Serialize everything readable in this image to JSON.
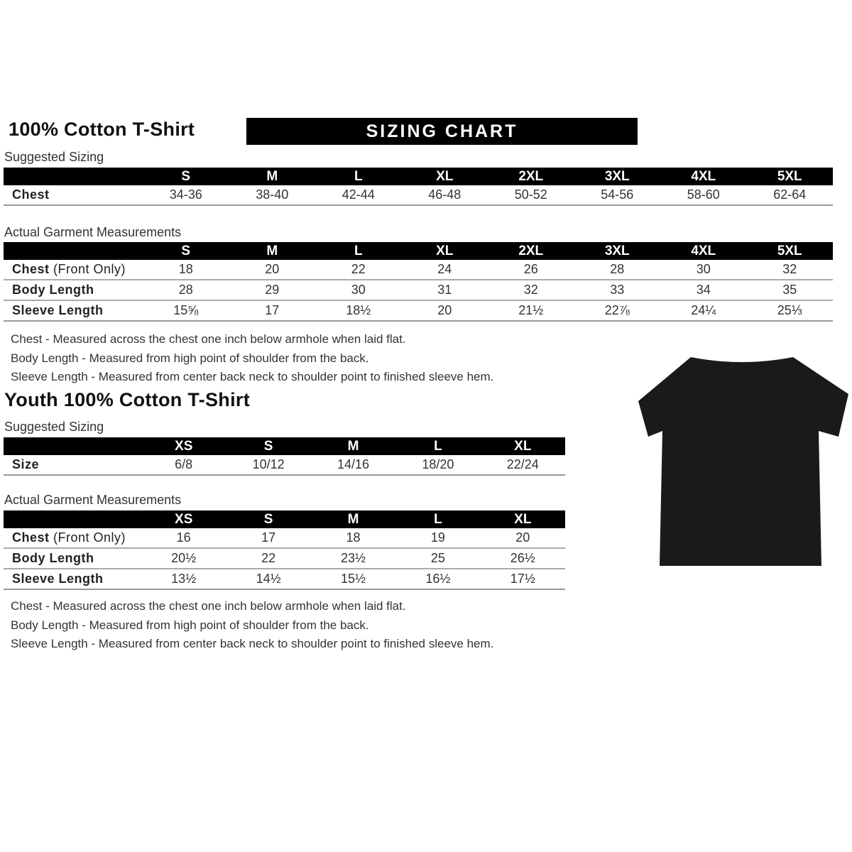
{
  "adult": {
    "title": "100% Cotton T-Shirt",
    "banner": "SIZING CHART",
    "suggested_label": "Suggested Sizing",
    "sizes": [
      "S",
      "M",
      "L",
      "XL",
      "2XL",
      "3XL",
      "4XL",
      "5XL"
    ],
    "suggested_rows": [
      {
        "label": "Chest",
        "values": [
          "34-36",
          "38-40",
          "42-44",
          "46-48",
          "50-52",
          "54-56",
          "58-60",
          "62-64"
        ]
      }
    ],
    "actual_label": "Actual Garment Measurements",
    "actual_rows": [
      {
        "label": "Chest",
        "label_note": " (Front Only)",
        "values": [
          "18",
          "20",
          "22",
          "24",
          "26",
          "28",
          "30",
          "32"
        ]
      },
      {
        "label": "Body Length",
        "values": [
          "28",
          "29",
          "30",
          "31",
          "32",
          "33",
          "34",
          "35"
        ]
      },
      {
        "label": "Sleeve Length",
        "values": [
          "15⅝",
          "17",
          "18½",
          "20",
          "21½",
          "22⅞",
          "24¼",
          "25⅓"
        ]
      }
    ],
    "notes": [
      "Chest - Measured across the chest one inch below armhole when laid flat.",
      "Body Length - Measured from high point of shoulder from the back.",
      "Sleeve Length - Measured from center back neck to shoulder point to finished sleeve hem."
    ]
  },
  "youth": {
    "title": "Youth 100% Cotton T-Shirt",
    "suggested_label": "Suggested Sizing",
    "sizes": [
      "XS",
      "S",
      "M",
      "L",
      "XL"
    ],
    "suggested_rows": [
      {
        "label": "Size",
        "values": [
          "6/8",
          "10/12",
          "14/16",
          "18/20",
          "22/24"
        ]
      }
    ],
    "actual_label": "Actual Garment Measurements",
    "actual_rows": [
      {
        "label": "Chest",
        "label_note": " (Front Only)",
        "values": [
          "16",
          "17",
          "18",
          "19",
          "20"
        ]
      },
      {
        "label": "Body Length",
        "values": [
          "20½",
          "22",
          "23½",
          "25",
          "26½"
        ]
      },
      {
        "label": "Sleeve Length",
        "values": [
          "13½",
          "14½",
          "15½",
          "16½",
          "17½"
        ]
      }
    ],
    "notes": [
      "Chest - Measured across the chest one inch below armhole when laid flat.",
      "Body Length - Measured from high point of shoulder from the back.",
      "Sleeve Length - Measured from center back neck to shoulder point to finished sleeve hem."
    ]
  },
  "image": {
    "icon": "black-tshirt",
    "color": "#1a1a1a"
  }
}
